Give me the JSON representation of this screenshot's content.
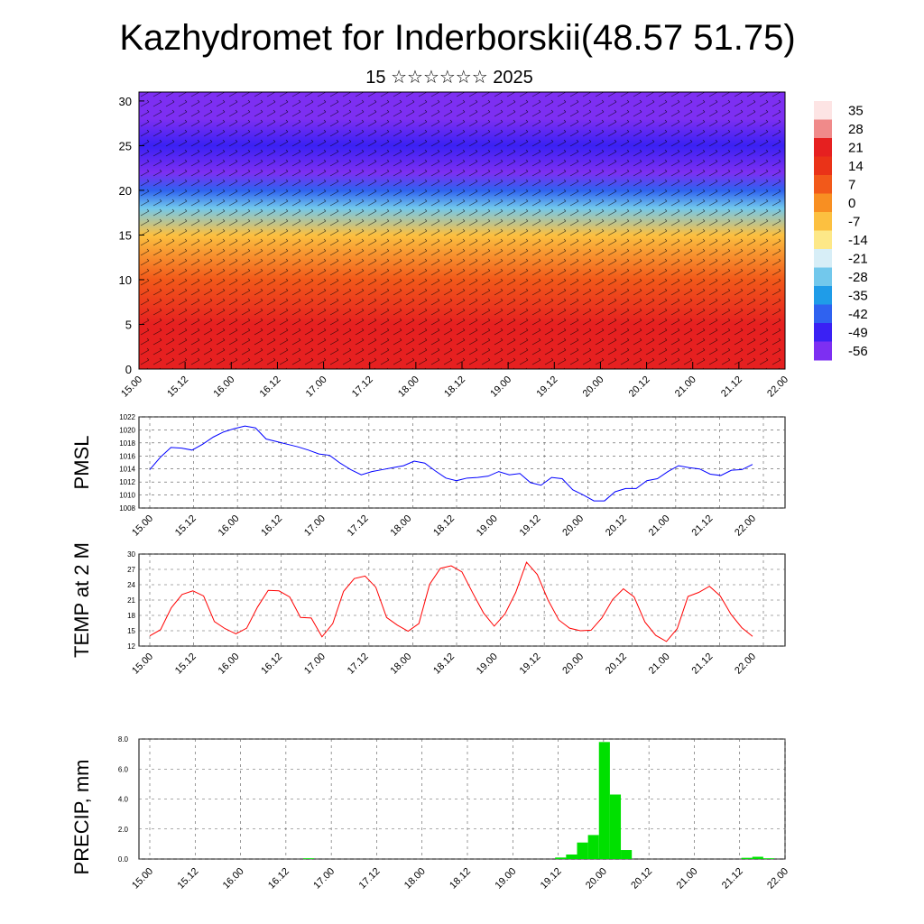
{
  "chart_data": [
    {
      "type": "heatmap",
      "title": "Kazhydromet for Inderborskii(48.57 51.75)",
      "subtitle": "15 ☆☆☆☆☆☆ 2025",
      "xlabel": "",
      "ylabel": "",
      "x_ticks": [
        "15.00",
        "15.12",
        "16.00",
        "16.12",
        "17.00",
        "17.12",
        "18.00",
        "18.12",
        "19.00",
        "19.12",
        "20.00",
        "20.12",
        "21.00",
        "21.12",
        "22.00"
      ],
      "y_ticks": [
        0,
        5,
        10,
        15,
        20,
        25,
        30
      ],
      "ylim": [
        0,
        31
      ],
      "colorbar": {
        "labels": [
          "35",
          "28",
          "21",
          "14",
          "7",
          "0",
          "-7",
          "-14",
          "-21",
          "-28",
          "-35",
          "-42",
          "-49",
          "-56"
        ],
        "colors": [
          "#fde4e4",
          "#f08a8a",
          "#e62020",
          "#ea3318",
          "#f2591a",
          "#f88f22",
          "#fcc040",
          "#fde888",
          "#d7eef7",
          "#72c8ec",
          "#1f9ce8",
          "#2f62f0",
          "#3a21f4",
          "#7d2ff2"
        ]
      },
      "layers": [
        {
          "level": 0,
          "temp": 26
        },
        {
          "level": 5,
          "temp": 22
        },
        {
          "level": 10,
          "temp": 12
        },
        {
          "level": 15,
          "temp": -7
        },
        {
          "level": 18,
          "temp": -28
        },
        {
          "level": 20,
          "temp": -42
        },
        {
          "level": 22,
          "temp": -52
        },
        {
          "level": 25,
          "temp": -49
        },
        {
          "level": 28,
          "temp": -56
        },
        {
          "level": 31,
          "temp": -60
        }
      ],
      "grid": true,
      "legend": "right"
    },
    {
      "type": "line",
      "ylabel": "PMSL",
      "ylim": [
        1008,
        1022
      ],
      "y_ticks": [
        1008,
        1010,
        1012,
        1014,
        1016,
        1018,
        1020,
        1022
      ],
      "x_ticks": [
        "15.00",
        "15.12",
        "16.00",
        "16.12",
        "17.00",
        "17.12",
        "18.00",
        "18.12",
        "19.00",
        "19.12",
        "20.00",
        "20.12",
        "21.00",
        "21.12",
        "22.00"
      ],
      "series": [
        {
          "color": "#0000ff",
          "values": [
            1013.9,
            1015.8,
            1017.3,
            1017.2,
            1016.9,
            1017.8,
            1018.9,
            1019.7,
            1020.2,
            1020.6,
            1020.3,
            1018.6,
            1018.2,
            1017.8,
            1017.4,
            1016.9,
            1016.3,
            1016.1,
            1014.9,
            1013.9,
            1013.1,
            1013.6,
            1013.9,
            1014.2,
            1014.5,
            1015.2,
            1014.9,
            1013.7,
            1012.6,
            1012.2,
            1012.6,
            1012.7,
            1012.9,
            1013.6,
            1013.1,
            1013.3,
            1011.9,
            1011.5,
            1012.7,
            1012.5,
            1010.8,
            1010.0,
            1009.1,
            1009.1,
            1010.5,
            1011.0,
            1011.0,
            1012.2,
            1012.5,
            1013.6,
            1014.5,
            1014.2,
            1014.0,
            1013.2,
            1013.0,
            1013.8,
            1013.9,
            1014.7
          ]
        }
      ],
      "grid": true
    },
    {
      "type": "line",
      "ylabel": "TEMP at 2 M",
      "ylim": [
        12,
        30
      ],
      "y_ticks": [
        12,
        15,
        18,
        21,
        24,
        27,
        30
      ],
      "x_ticks": [
        "15.00",
        "15.12",
        "16.00",
        "16.12",
        "17.00",
        "17.12",
        "18.00",
        "18.12",
        "19.00",
        "19.12",
        "20.00",
        "20.12",
        "21.00",
        "21.12",
        "22.00"
      ],
      "series": [
        {
          "color": "#ff0000",
          "values": [
            14.0,
            15.2,
            19.5,
            22.1,
            22.8,
            21.8,
            16.8,
            15.4,
            14.4,
            15.5,
            19.6,
            22.9,
            22.8,
            21.6,
            17.6,
            17.5,
            13.8,
            16.4,
            22.7,
            25.2,
            25.7,
            23.5,
            17.6,
            16.1,
            14.9,
            16.4,
            24.1,
            27.2,
            27.7,
            26.5,
            22.4,
            18.5,
            15.9,
            18.3,
            22.5,
            28.4,
            26.0,
            21.0,
            17.1,
            15.5,
            15.0,
            15.1,
            17.5,
            21.1,
            23.2,
            21.6,
            16.7,
            14.1,
            12.9,
            15.4,
            21.7,
            22.5,
            23.7,
            21.8,
            18.2,
            15.6,
            13.9
          ]
        }
      ],
      "grid": true
    },
    {
      "type": "bar",
      "ylabel": "PRECIP, mm",
      "ylim": [
        0,
        8.0
      ],
      "y_ticks": [
        "0.0",
        "2.0",
        "4.0",
        "6.0",
        "8.0"
      ],
      "x_ticks": [
        "15.00",
        "15.12",
        "16.00",
        "16.12",
        "17.00",
        "17.12",
        "18.00",
        "18.12",
        "19.00",
        "19.12",
        "20.00",
        "20.12",
        "21.00",
        "21.12",
        "22.00"
      ],
      "color": "#00e000",
      "values": [
        0,
        0,
        0,
        0,
        0,
        0,
        0,
        0,
        0,
        0,
        0,
        0,
        0,
        0,
        0.05,
        0,
        0,
        0,
        0,
        0,
        0,
        0,
        0,
        0,
        0,
        0,
        0,
        0,
        0,
        0,
        0,
        0,
        0,
        0,
        0,
        0,
        0,
        0.1,
        0.3,
        1.1,
        1.6,
        7.8,
        4.3,
        0.6,
        0,
        0,
        0,
        0,
        0,
        0,
        0,
        0,
        0,
        0,
        0.08,
        0.15,
        0.05
      ]
    }
  ]
}
